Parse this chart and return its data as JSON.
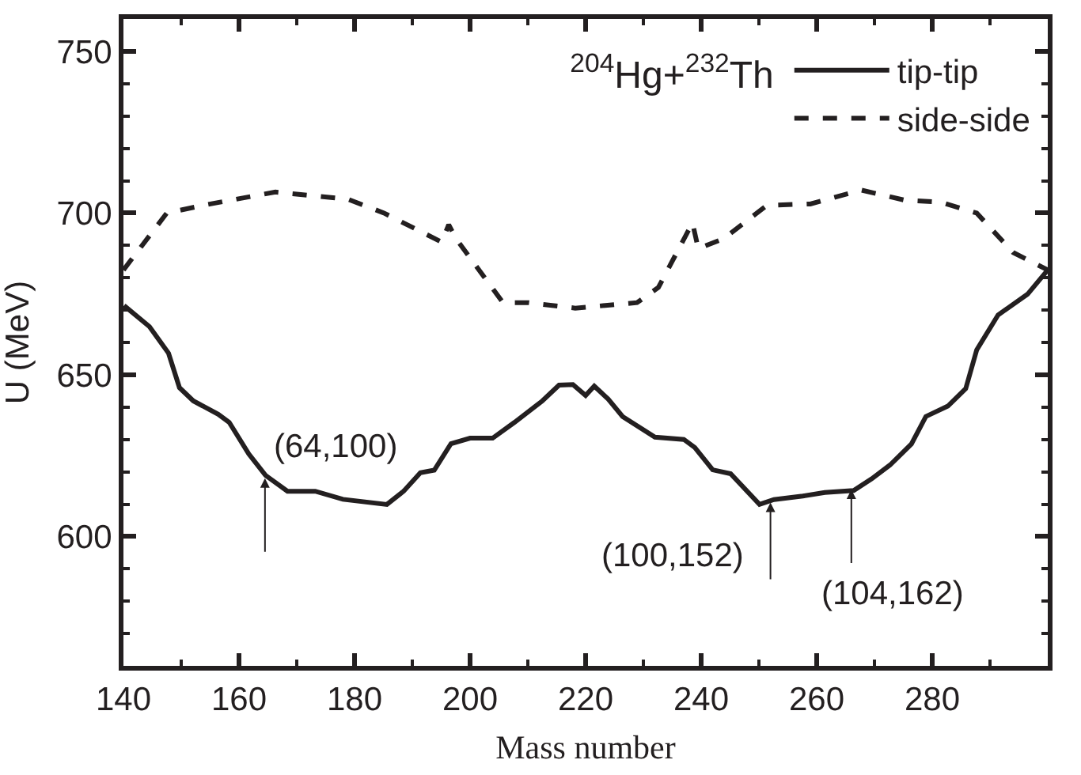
{
  "chart_data": {
    "type": "line",
    "xlabel": "Mass number",
    "ylabel": "U (MeV)",
    "legend_title": "$^{204}$Hg+$^{232}$Th",
    "xlim": [
      140,
      300
    ],
    "ylim": [
      560,
      760
    ],
    "xticks": [
      140,
      {
        "value": 150,
        "label": null
      },
      160,
      {
        "value": 170,
        "label": null
      },
      180,
      {
        "value": 190,
        "label": null
      },
      200,
      {
        "value": 210,
        "label": null
      },
      220,
      {
        "value": 230,
        "label": null
      },
      240,
      {
        "value": 250,
        "label": null
      },
      260,
      {
        "value": 270,
        "label": null
      },
      280,
      {
        "value": 290,
        "label": null
      }
    ],
    "yticks": [
      {
        "value": 560,
        "label": null
      },
      {
        "value": 570,
        "label": null
      },
      {
        "value": 580,
        "label": null
      },
      {
        "value": 590,
        "label": null
      },
      600,
      {
        "value": 610,
        "label": null
      },
      {
        "value": 620,
        "label": null
      },
      {
        "value": 630,
        "label": null
      },
      {
        "value": 640,
        "label": null
      },
      650,
      {
        "value": 660,
        "label": null
      },
      {
        "value": 670,
        "label": null
      },
      {
        "value": 680,
        "label": null
      },
      {
        "value": 690,
        "label": null
      },
      700,
      {
        "value": 710,
        "label": null
      },
      {
        "value": 720,
        "label": null
      },
      {
        "value": 730,
        "label": null
      },
      {
        "value": 740,
        "label": null
      },
      750,
      {
        "value": 760,
        "label": null
      }
    ],
    "grid": false,
    "legend": "top right",
    "marker": "none",
    "series": [
      {
        "name": "tip-tip",
        "color": "#231f20",
        "line_style": "solid",
        "x": [
          140.1,
          144.5,
          147.8,
          149.7,
          152.1,
          156.4,
          158.3,
          161.7,
          164.6,
          168.4,
          173.2,
          178,
          185.6,
          188.5,
          191.4,
          193.8,
          196.7,
          200,
          203.9,
          207.7,
          212.5,
          215.4,
          217.8,
          220,
          221.5,
          223.9,
          226.4,
          232,
          237,
          238.9,
          242,
          245.1,
          250.1,
          252.6,
          257.6,
          261.4,
          266.4,
          269.5,
          272.7,
          276.4,
          278.9,
          282.7,
          285.8,
          287.7,
          291.4,
          296.5,
          300
        ],
        "values": [
          671.4,
          664.9,
          656.7,
          646,
          641.9,
          637.8,
          635.3,
          625.5,
          618.9,
          614,
          614,
          611.5,
          609.9,
          614,
          619.7,
          620.5,
          628.7,
          630.4,
          630.4,
          635.3,
          641.9,
          646.8,
          647,
          643.6,
          646.5,
          642.5,
          637.1,
          630.7,
          630,
          627.5,
          620.6,
          619.4,
          609.9,
          611.4,
          612.5,
          613.6,
          614.2,
          617.8,
          622.1,
          628.6,
          637.1,
          640.3,
          645.7,
          657.7,
          668.5,
          674.9,
          682.4
        ]
      },
      {
        "name": "side-side",
        "color": "#231f20",
        "line_style": "dashed",
        "x": [
          140,
          147.5,
          153.8,
          166.3,
          178.8,
          185.1,
          195.1,
          196.3,
          197.6,
          205.7,
          210.1,
          218.2,
          228.9,
          232.6,
          238.5,
          239.5,
          243.9,
          251.4,
          258.9,
          267.7,
          275.2,
          281.4,
          287.7,
          294,
          300
        ],
        "values": [
          682.4,
          700,
          702.4,
          706.5,
          704.3,
          700,
          691,
          696.4,
          692,
          672.3,
          672.3,
          670.6,
          672.3,
          677,
          697,
          689,
          692.1,
          702.4,
          702.8,
          707.1,
          704,
          703.4,
          700,
          687.8,
          682.4
        ]
      }
    ],
    "annotations": [
      {
        "text": "(64,100)",
        "x": 164.5,
        "y": 618
      },
      {
        "text": "(100,152)",
        "x": 252,
        "y": 610.5
      },
      {
        "text": "(104,162)",
        "x": 266,
        "y": 614.5
      }
    ]
  }
}
